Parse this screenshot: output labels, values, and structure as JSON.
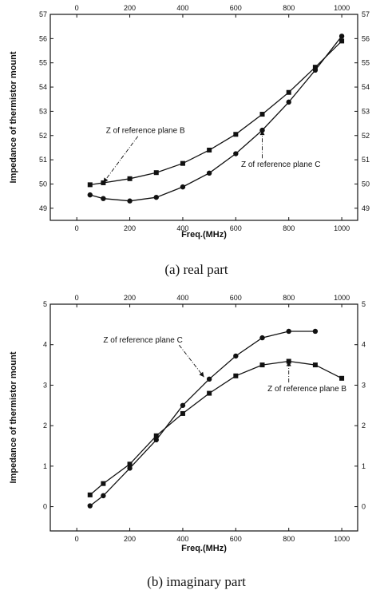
{
  "chart_data": [
    {
      "type": "line",
      "caption": "(a)  real  part",
      "xlabel": "Freq.(MHz)",
      "ylabel": "Impedance of thermistor mount",
      "xlim": [
        -100,
        1060
      ],
      "ylim": [
        48.5,
        57
      ],
      "x_ticks_bottom": [
        0,
        200,
        400,
        600,
        800,
        1000
      ],
      "x_ticks_top": [
        0,
        200,
        400,
        600,
        800,
        1000
      ],
      "y_ticks_left": [
        49,
        50,
        51,
        52,
        53,
        54,
        55,
        56,
        57
      ],
      "y_ticks_right": [
        49,
        50,
        51,
        52,
        53,
        54,
        55,
        56,
        57
      ],
      "grid": false,
      "series": [
        {
          "name": "Z of reference plane B",
          "marker": "square",
          "x": [
            50,
            100,
            200,
            300,
            400,
            500,
            600,
            700,
            800,
            900,
            1000
          ],
          "y": [
            49.97,
            50.05,
            50.22,
            50.47,
            50.85,
            51.4,
            52.05,
            52.88,
            53.78,
            54.82,
            55.9
          ]
        },
        {
          "name": "Z of reference plane C",
          "marker": "circle",
          "x": [
            50,
            100,
            200,
            300,
            400,
            500,
            600,
            700,
            800,
            900,
            1000
          ],
          "y": [
            49.55,
            49.4,
            49.3,
            49.45,
            49.88,
            50.45,
            51.25,
            52.22,
            53.38,
            54.7,
            56.1
          ]
        }
      ],
      "annotations": [
        {
          "text": "Z of reference plane B",
          "x": 110,
          "y": 52.1,
          "arrow_to": [
            100,
            50.05
          ]
        },
        {
          "text": "Z of reference plane C",
          "x": 620,
          "y": 50.7,
          "arrow_to": [
            700,
            52.22
          ]
        }
      ]
    },
    {
      "type": "line",
      "caption": "(b)  imaginary  part",
      "xlabel": "Freq.(MHz)",
      "ylabel": "Impedance of thermistor mount",
      "xlim": [
        -100,
        1060
      ],
      "ylim": [
        -0.6,
        5
      ],
      "x_ticks_bottom": [
        0,
        200,
        400,
        600,
        800,
        1000
      ],
      "x_ticks_top": [
        0,
        200,
        400,
        600,
        800,
        1000
      ],
      "y_ticks_left": [
        0,
        1,
        2,
        3,
        4,
        5
      ],
      "y_ticks_right": [
        0,
        1,
        2,
        3,
        4,
        5
      ],
      "grid": false,
      "series": [
        {
          "name": "Z of reference plane C",
          "marker": "circle",
          "x": [
            50,
            100,
            200,
            300,
            400,
            500,
            600,
            700,
            800,
            900
          ],
          "y": [
            0.02,
            0.27,
            0.95,
            1.65,
            2.5,
            3.15,
            3.72,
            4.17,
            4.33,
            4.33
          ]
        },
        {
          "name": "Z of reference plane B",
          "marker": "square",
          "x": [
            50,
            100,
            200,
            300,
            400,
            500,
            600,
            700,
            800,
            900,
            1000
          ],
          "y": [
            0.29,
            0.57,
            1.05,
            1.75,
            2.3,
            2.8,
            3.23,
            3.5,
            3.59,
            3.5,
            3.17
          ]
        }
      ],
      "annotations": [
        {
          "text": "Z of reference plane C",
          "x": 100,
          "y": 4.05,
          "arrow_to": [
            480,
            3.2
          ]
        },
        {
          "text": "Z of reference plane B",
          "x": 720,
          "y": 2.85,
          "arrow_to": [
            800,
            3.59
          ]
        }
      ]
    }
  ]
}
